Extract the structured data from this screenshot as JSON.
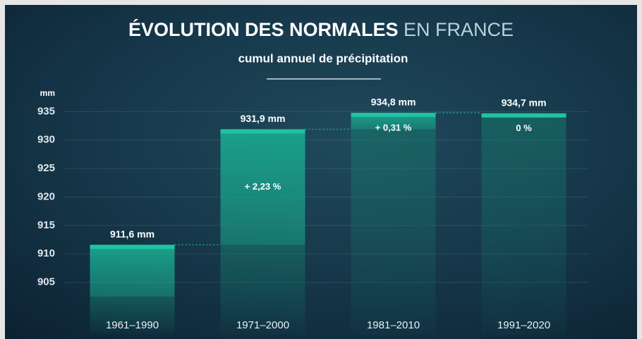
{
  "chart_data": {
    "type": "bar",
    "title": "ÉVOLUTION DES NORMALES",
    "title_light": "EN FRANCE",
    "subtitle": "cumul annuel de précipitation",
    "y_unit": "mm",
    "categories": [
      "1961–1990",
      "1971–2000",
      "1981–2010",
      "1991–2020"
    ],
    "values": [
      911.6,
      931.9,
      934.8,
      934.7
    ],
    "value_labels": [
      "911,6 mm",
      "931,9 mm",
      "934,8 mm",
      "934,7 mm"
    ],
    "change_labels": [
      "+ 2,23 %",
      "+ 0,31 %",
      "0 %"
    ],
    "color": "#1aa58e",
    "ylim": [
      900,
      940
    ],
    "yticks": [
      905,
      910,
      915,
      920,
      925,
      930,
      935
    ],
    "grid": true
  }
}
